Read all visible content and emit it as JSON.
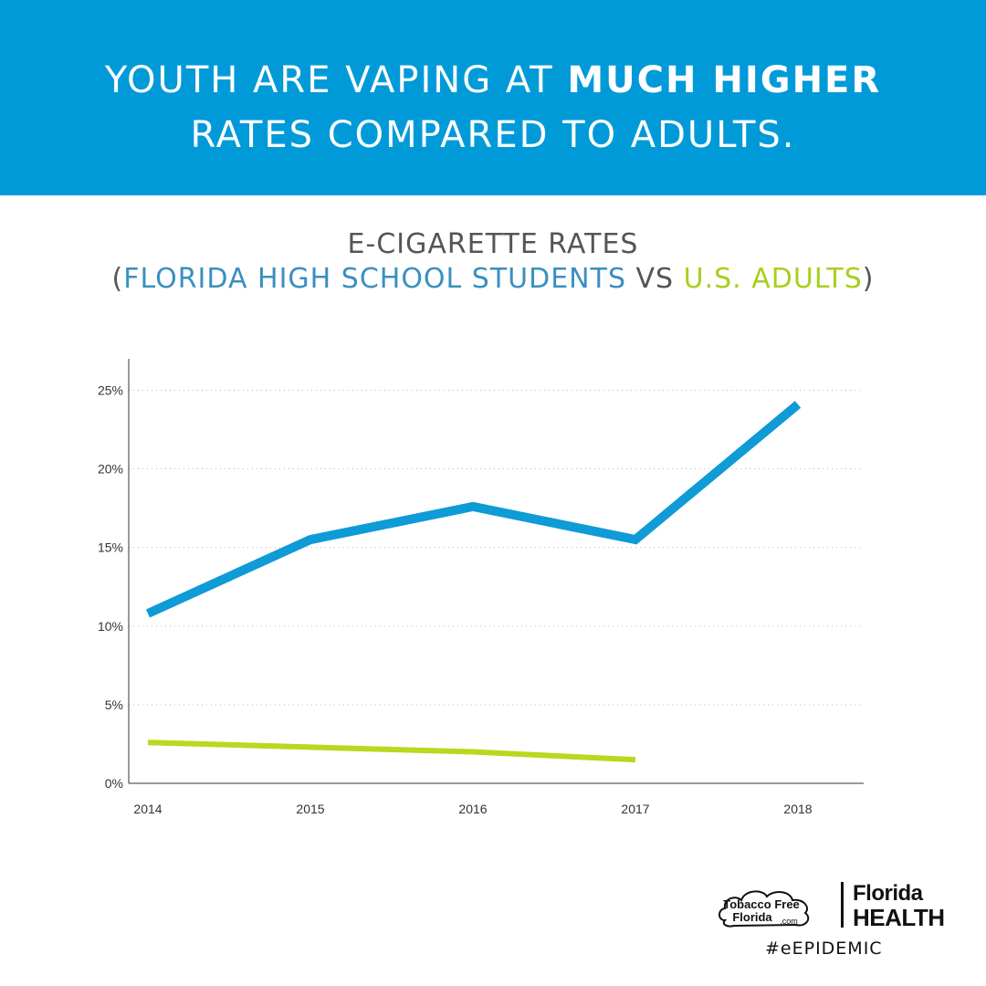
{
  "header": {
    "line1_light": "YOUTH ARE VAPING AT ",
    "line1_bold": "MUCH HIGHER",
    "line2": "RATES COMPARED TO ADULTS."
  },
  "subtitle": {
    "line1": "E-CIGARETTE RATES",
    "open_paren": "(",
    "series_a": "FLORIDA HIGH SCHOOL STUDENTS",
    "vs": " VS ",
    "series_b": "U.S. ADULTS",
    "close_paren": ")"
  },
  "chart_data": {
    "type": "line",
    "x": [
      2014,
      2015,
      2016,
      2017,
      2018
    ],
    "xticks": [
      "2014",
      "2015",
      "2016",
      "2017",
      "2018"
    ],
    "yticks": [
      "0%",
      "5%",
      "10%",
      "15%",
      "20%",
      "25%"
    ],
    "ylim": [
      0,
      27
    ],
    "grid": true,
    "series": [
      {
        "name": "FLORIDA HIGH SCHOOL STUDENTS",
        "color": "#0e9bd6",
        "values": [
          10.8,
          15.5,
          17.6,
          15.5,
          24.1
        ]
      },
      {
        "name": "U.S. ADULTS",
        "color": "#b7d91e",
        "values": [
          2.6,
          2.3,
          2.0,
          1.5,
          null
        ]
      }
    ]
  },
  "footer": {
    "tff_line1": "Tobacco Free",
    "tff_line2": "Florida",
    "tff_com": ".com",
    "fh_line1": "Florida",
    "fh_line2": "HEALTH",
    "hashtag": "#eEPIDEMIC"
  },
  "colors": {
    "banner": "#009ad9",
    "youth": "#0e9bd6",
    "adult": "#b7d91e"
  }
}
